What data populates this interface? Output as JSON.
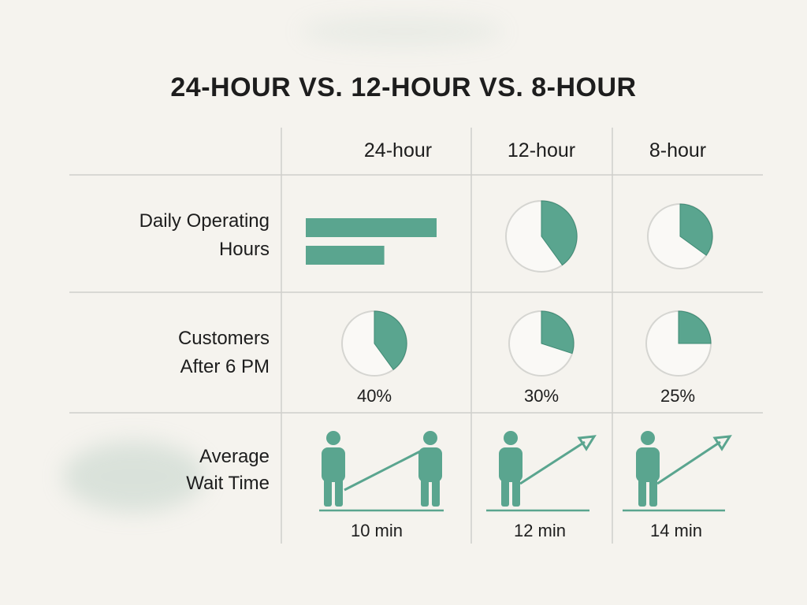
{
  "title": "24-HOUR VS. 12-HOUR VS. 8-HOUR",
  "colors": {
    "accent": "#5aa58f",
    "accent_dark": "#3f8a74",
    "grid": "#cfcfcb",
    "circle_outline": "#d5d5d1",
    "text": "#1d1d1d",
    "background": "#f5f3ee"
  },
  "columns": [
    "24-hour",
    "12-hour",
    "8-hour"
  ],
  "rows": [
    {
      "label_lines": [
        "Daily Operating",
        "Hours"
      ]
    },
    {
      "label_lines": [
        "Customers",
        "After 6 PM"
      ]
    },
    {
      "label_lines": [
        "Average",
        "Wait Time"
      ]
    }
  ],
  "chart_data": [
    {
      "type": "bar",
      "metric": "Daily Operating Hours",
      "column": "24-hour",
      "values": [
        1.0,
        0.6
      ]
    },
    {
      "type": "pie",
      "metric": "Daily Operating Hours",
      "columns": [
        "12-hour",
        "8-hour"
      ],
      "values": [
        0.4,
        0.35
      ]
    },
    {
      "type": "pie",
      "metric": "Customers After 6 PM",
      "columns": [
        "24-hour",
        "12-hour",
        "8-hour"
      ],
      "values": [
        40,
        30,
        25
      ],
      "labels": [
        "40%",
        "30%",
        "25%"
      ],
      "unit": "%"
    },
    {
      "type": "table",
      "metric": "Average Wait Time",
      "columns": [
        "24-hour",
        "12-hour",
        "8-hour"
      ],
      "values": [
        10,
        12,
        14
      ],
      "labels": [
        "10 min",
        "12 min",
        "14 min"
      ],
      "unit": "min",
      "icons": [
        "person-icon",
        "trend-arrow-icon"
      ]
    }
  ]
}
